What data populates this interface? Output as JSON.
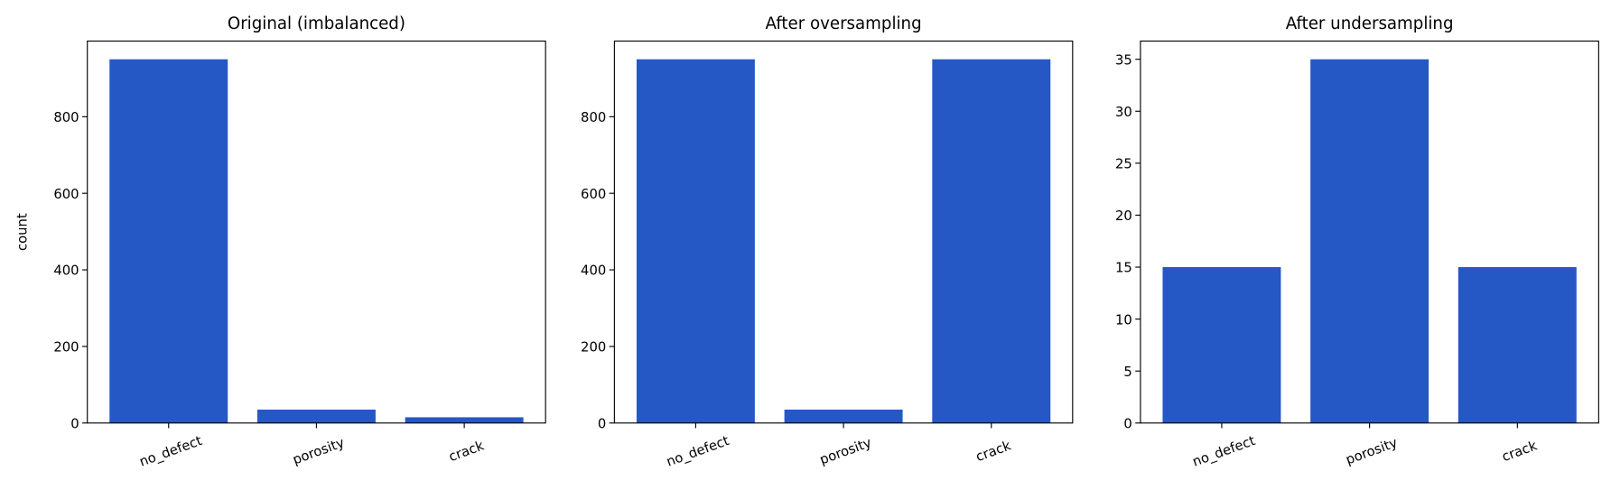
{
  "chart_data": [
    {
      "type": "bar",
      "title": "Original (imbalanced)",
      "ylabel": "count",
      "categories": [
        "no_defect",
        "porosity",
        "crack"
      ],
      "values": [
        950,
        35,
        15
      ],
      "color": "#2558c5",
      "ylim": [
        0,
        997.5
      ],
      "yticks": [
        0,
        200,
        400,
        600,
        800
      ]
    },
    {
      "type": "bar",
      "title": "After oversampling",
      "categories": [
        "no_defect",
        "porosity",
        "crack"
      ],
      "values": [
        950,
        35,
        950
      ],
      "color": "#2558c5",
      "ylim": [
        0,
        997.5
      ],
      "yticks": [
        0,
        200,
        400,
        600,
        800
      ]
    },
    {
      "type": "bar",
      "title": "After undersampling",
      "categories": [
        "no_defect",
        "porosity",
        "crack"
      ],
      "values": [
        15,
        35,
        15
      ],
      "color": "#2558c5",
      "ylim": [
        0,
        36.75
      ],
      "yticks": [
        0,
        5,
        10,
        15,
        20,
        25,
        30,
        35
      ]
    }
  ]
}
